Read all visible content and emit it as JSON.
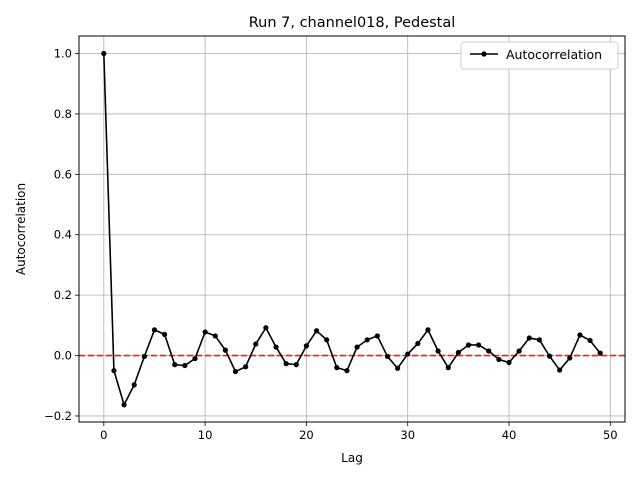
{
  "chart_data": {
    "type": "line",
    "title": "Run 7, channel018, Pedestal",
    "xlabel": "Lag",
    "ylabel": "Autocorrelation",
    "xlim": [
      -2.45,
      51.45
    ],
    "ylim": [
      -0.22,
      1.058
    ],
    "grid": true,
    "legend_position": "top-right",
    "x_ticks": [
      0,
      10,
      20,
      30,
      40,
      50
    ],
    "x_tick_labels": [
      "0",
      "10",
      "20",
      "30",
      "40",
      "50"
    ],
    "y_ticks": [
      -0.2,
      0.0,
      0.2,
      0.4,
      0.6,
      0.8,
      1.0
    ],
    "y_tick_labels": [
      "−0.2",
      "0.0",
      "0.2",
      "0.4",
      "0.6",
      "0.8",
      "1.0"
    ],
    "reference_line": {
      "y": 0,
      "color": "#e8231b",
      "style": "dashed"
    },
    "series": [
      {
        "name": "Autocorrelation",
        "color": "#000000",
        "marker": "circle",
        "x": [
          0,
          1,
          2,
          3,
          4,
          5,
          6,
          7,
          8,
          9,
          10,
          11,
          12,
          13,
          14,
          15,
          16,
          17,
          18,
          19,
          20,
          21,
          22,
          23,
          24,
          25,
          26,
          27,
          28,
          29,
          30,
          31,
          32,
          33,
          34,
          35,
          36,
          37,
          38,
          39,
          40,
          41,
          42,
          43,
          44,
          45,
          46,
          47,
          48,
          49
        ],
        "values": [
          1.0,
          -0.05,
          -0.163,
          -0.097,
          -0.003,
          0.085,
          0.07,
          -0.03,
          -0.033,
          -0.01,
          0.078,
          0.065,
          0.018,
          -0.053,
          -0.037,
          0.038,
          0.092,
          0.028,
          -0.027,
          -0.03,
          0.032,
          0.082,
          0.052,
          -0.04,
          -0.05,
          0.028,
          0.052,
          0.065,
          -0.003,
          -0.042,
          0.005,
          0.04,
          0.085,
          0.015,
          -0.04,
          0.01,
          0.035,
          0.035,
          0.015,
          -0.013,
          -0.023,
          0.015,
          0.058,
          0.052,
          -0.002,
          -0.048,
          -0.008,
          0.068,
          0.05,
          0.008
        ]
      }
    ]
  }
}
